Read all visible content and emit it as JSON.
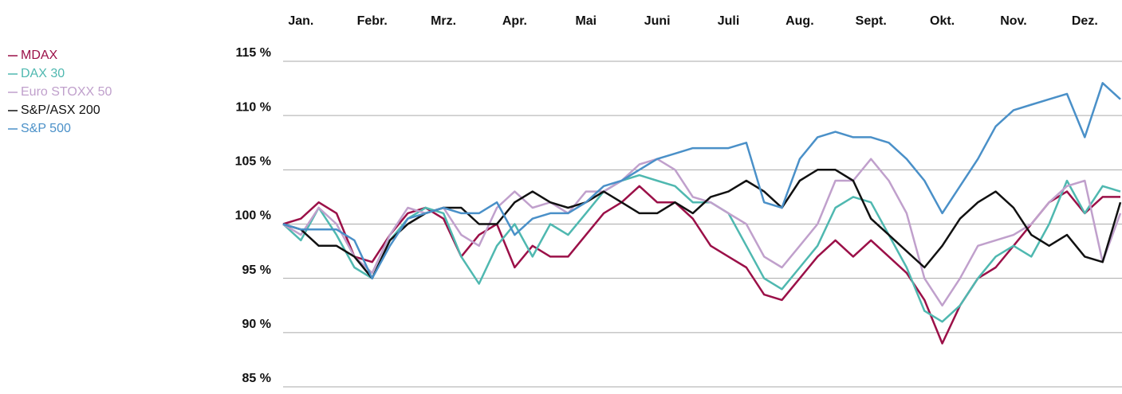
{
  "chart_data": {
    "type": "line",
    "categories": [
      null,
      "Jan.",
      null,
      null,
      null,
      "Febr.",
      null,
      null,
      null,
      "Mrz.",
      null,
      null,
      null,
      "Apr.",
      null,
      null,
      null,
      "Mai",
      null,
      null,
      null,
      "Juni",
      null,
      null,
      null,
      "Juli",
      null,
      null,
      null,
      "Aug.",
      null,
      null,
      null,
      "Sept.",
      null,
      null,
      null,
      "Okt.",
      null,
      null,
      null,
      "Nov.",
      null,
      null,
      null,
      "Dez.",
      null,
      null
    ],
    "series": [
      {
        "name": "MDAX",
        "color": "#9b1048",
        "values": [
          100,
          100.5,
          102,
          101,
          97,
          96.5,
          99,
          101,
          101.5,
          100.5,
          97,
          99,
          100,
          96,
          98,
          97,
          97,
          99,
          101,
          102,
          103.5,
          102,
          102,
          100.5,
          98,
          97,
          96,
          93.5,
          93,
          95,
          97,
          98.5,
          97,
          98.5,
          97,
          95.5,
          93,
          89,
          92.5,
          95,
          96,
          98,
          100,
          102,
          103,
          101,
          102.5,
          102.5
        ]
      },
      {
        "name": "DAX 30",
        "color": "#4fb8b0",
        "values": [
          100,
          98.5,
          101.5,
          99,
          96,
          95,
          98.5,
          100.5,
          101.5,
          101,
          97,
          94.5,
          98,
          100,
          97,
          100,
          99,
          101,
          103,
          104,
          104.5,
          104,
          103.5,
          102,
          102,
          101,
          98,
          95,
          94,
          96,
          98,
          101.5,
          102.5,
          102,
          99,
          96,
          92,
          91,
          92.5,
          95,
          97,
          98,
          97,
          100,
          104,
          101,
          103.5,
          103
        ]
      },
      {
        "name": "Euro STOXX 50",
        "color": "#c0a0cc",
        "values": [
          100,
          99,
          101.5,
          100,
          97,
          95.5,
          99,
          101.5,
          101,
          101.5,
          99,
          98,
          101.5,
          103,
          101.5,
          102,
          101,
          103,
          103,
          104,
          105.5,
          106,
          105,
          102.5,
          102,
          101,
          100,
          97,
          96,
          98,
          100,
          104,
          104,
          106,
          104,
          101,
          95,
          92.5,
          95,
          98,
          98.5,
          99,
          100,
          102,
          103.5,
          104,
          96.5,
          101
        ]
      },
      {
        "name": "S&P/ASX 200",
        "color": "#111111",
        "values": [
          100,
          99.5,
          98,
          98,
          97,
          95,
          98.5,
          100,
          101,
          101.5,
          101.5,
          100,
          100,
          102,
          103,
          102,
          101.5,
          102,
          103,
          102,
          101,
          101,
          102,
          101,
          102.5,
          103,
          104,
          103,
          101.5,
          104,
          105,
          105,
          104,
          100.5,
          99,
          97.5,
          96,
          98,
          100.5,
          102,
          103,
          101.5,
          99,
          98,
          99,
          97,
          96.5,
          102
        ]
      },
      {
        "name": "S&P 500",
        "color": "#4a90c8",
        "values": [
          100,
          99.5,
          99.5,
          99.5,
          98.5,
          95,
          98,
          100.5,
          101,
          101.5,
          101,
          101,
          102,
          99,
          100.5,
          101,
          101,
          102,
          103.5,
          104,
          105,
          106,
          106.5,
          107,
          107,
          107,
          107.5,
          102,
          101.5,
          106,
          108,
          108.5,
          108,
          108,
          107.5,
          106,
          104,
          101,
          103.5,
          106,
          109,
          110.5,
          111,
          111.5,
          112,
          108,
          113,
          111.5
        ]
      }
    ],
    "ylim": [
      85,
      115
    ],
    "yticks": [
      {
        "value": 85,
        "label": "85 %"
      },
      {
        "value": 90,
        "label": "90 %"
      },
      {
        "value": 95,
        "label": "95 %"
      },
      {
        "value": 100,
        "label": "100 %"
      },
      {
        "value": 105,
        "label": "105 %"
      },
      {
        "value": 110,
        "label": "110 %"
      },
      {
        "value": 115,
        "label": "115 %"
      }
    ],
    "grid": true
  }
}
